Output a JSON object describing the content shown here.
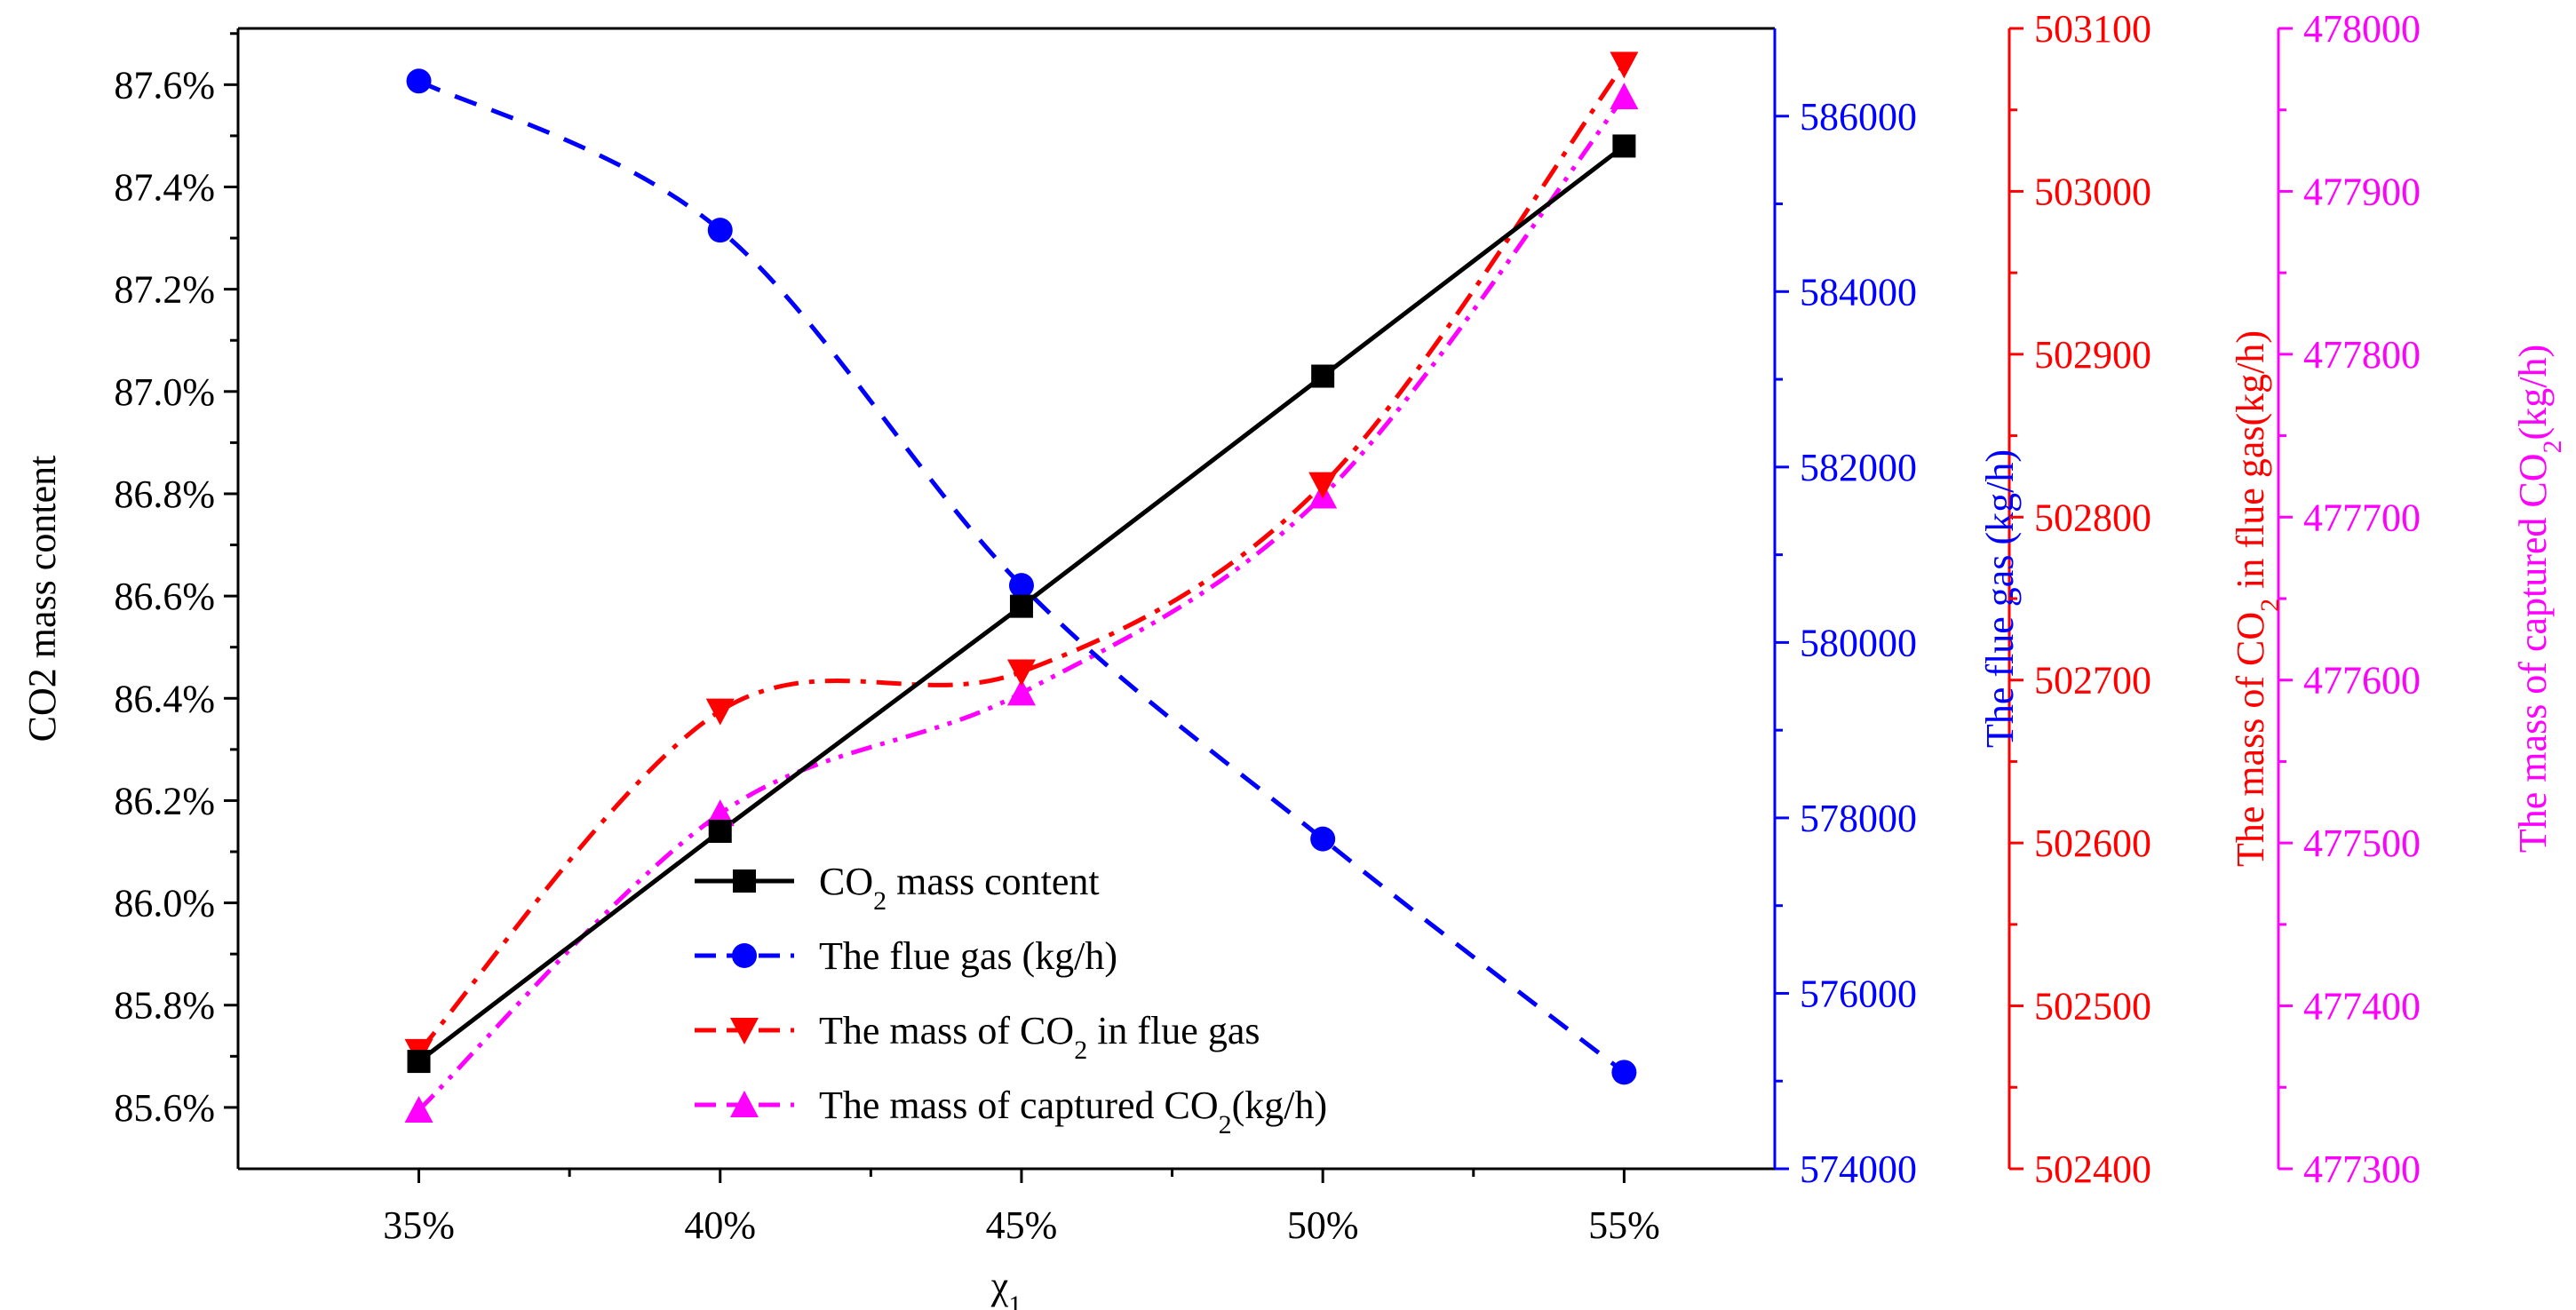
{
  "chart_data": {
    "type": "line",
    "x": [
      35,
      40,
      45,
      50,
      55
    ],
    "x_tick_labels": [
      "35%",
      "40%",
      "45%",
      "50%",
      "55%"
    ],
    "xlim": [
      32,
      57.5
    ],
    "xlabel": {
      "base": "χ",
      "sub": "1"
    },
    "series": [
      {
        "name": "CO2 mass content",
        "legend": {
          "pre": "CO",
          "sub": "2",
          "post": " mass content"
        },
        "axis": "left",
        "color": "#000000",
        "marker": "square",
        "linestyle": "solid",
        "values": [
          85.69,
          86.14,
          86.58,
          87.03,
          87.48
        ]
      },
      {
        "name": "The flue gas (kg/h)",
        "legend": {
          "pre": "The flue gas (kg/h)",
          "sub": "",
          "post": ""
        },
        "axis": "blue",
        "color": "#0000ff",
        "marker": "circle",
        "linestyle": "dash",
        "values": [
          586400,
          584700,
          580650,
          577760,
          575100
        ]
      },
      {
        "name": "The mass of CO2 in flue gas",
        "legend": {
          "pre": "The mass of CO",
          "sub": "2",
          "post": " in flue gas"
        },
        "axis": "red",
        "color": "#ff0000",
        "marker": "triangle-down",
        "linestyle": "dashdot",
        "values": [
          502472,
          502681,
          502705,
          502820,
          503078
        ]
      },
      {
        "name": "The mass of captured CO2(kg/h)",
        "legend": {
          "pre": "The mass of captured CO",
          "sub": "2",
          "post": "(kg/h)"
        },
        "axis": "magenta",
        "color": "#ff00ff",
        "marker": "triangle-up",
        "linestyle": "dashdotdot",
        "values": [
          477336,
          477518,
          477592,
          477713,
          477958
        ]
      }
    ],
    "axes": {
      "left": {
        "label": "CO2 mass content",
        "ylim": [
          85.48,
          87.71
        ],
        "ticks": [
          85.6,
          85.8,
          86.0,
          86.2,
          86.4,
          86.6,
          86.8,
          87.0,
          87.2,
          87.4,
          87.6
        ],
        "tick_labels": [
          "85.6%",
          "85.8%",
          "86.0%",
          "86.2%",
          "86.4%",
          "86.6%",
          "86.8%",
          "87.0%",
          "87.2%",
          "87.4%",
          "87.6%"
        ],
        "color": "#000000"
      },
      "blue": {
        "label": "The flue gas (kg/h)",
        "ylim": [
          574000,
          587000
        ],
        "ticks": [
          574000,
          576000,
          578000,
          580000,
          582000,
          584000,
          586000
        ],
        "tick_labels": [
          "574000",
          "576000",
          "578000",
          "580000",
          "582000",
          "584000",
          "586000"
        ],
        "color": "#0000ff"
      },
      "red": {
        "label": {
          "pre": "The mass of CO",
          "sub": "2",
          "post": " in flue gas(kg/h)"
        },
        "ylim": [
          502400,
          503100
        ],
        "ticks": [
          502400,
          502500,
          502600,
          502700,
          502800,
          502900,
          503000,
          503100
        ],
        "tick_labels": [
          "502400",
          "502500",
          "502600",
          "502700",
          "502800",
          "502900",
          "503000",
          "503100"
        ],
        "color": "#ff0000"
      },
      "magenta": {
        "label": {
          "pre": "The mass of captured CO",
          "sub": "2",
          "post": "(kg/h)"
        },
        "ylim": [
          477300,
          478000
        ],
        "ticks": [
          477300,
          477400,
          477500,
          477600,
          477700,
          477800,
          477900,
          478000
        ],
        "tick_labels": [
          "477300",
          "477400",
          "477500",
          "477600",
          "477700",
          "477800",
          "477900",
          "478000"
        ],
        "color": "#ff00ff"
      }
    },
    "legend_position": "bottom-center"
  }
}
